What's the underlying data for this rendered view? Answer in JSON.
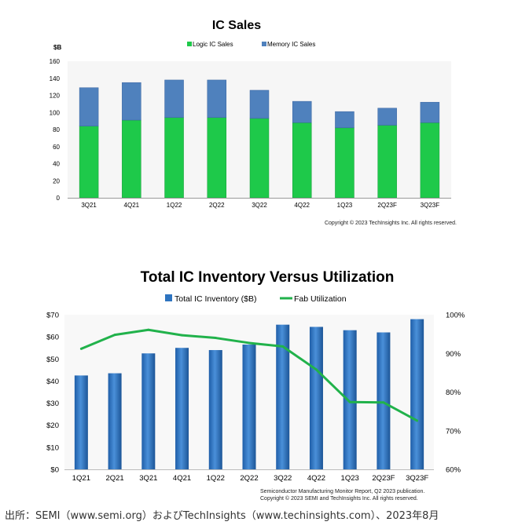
{
  "chart_data": [
    {
      "type": "bar",
      "title": "IC Sales",
      "ylabel": "$B",
      "ylim": [
        0,
        160
      ],
      "yticks": [
        0,
        20,
        40,
        60,
        80,
        100,
        120,
        140,
        160
      ],
      "stacked": true,
      "legend_position": "top",
      "categories": [
        "3Q21",
        "4Q21",
        "1Q22",
        "2Q22",
        "3Q22",
        "4Q22",
        "1Q23",
        "2Q23F",
        "3Q23F"
      ],
      "series": [
        {
          "name": "Logic IC Sales",
          "color": "#1ec94a",
          "values": [
            84,
            91,
            94,
            94,
            93,
            88,
            82,
            85,
            88
          ]
        },
        {
          "name": "Memory IC Sales",
          "color": "#4f81bd",
          "values": [
            45,
            44,
            44,
            44,
            33,
            25,
            19,
            20,
            24
          ]
        }
      ],
      "copyright": "Copyright © 2023 TechInsights Inc.  All rights reserved."
    },
    {
      "type": "bar",
      "title": "Total IC Inventory Versus Utilization",
      "ylim": [
        0,
        70
      ],
      "yticks": [
        "$0",
        "$10",
        "$20",
        "$30",
        "$40",
        "$50",
        "$60",
        "$70"
      ],
      "y2lim": [
        60,
        100
      ],
      "y2ticks": [
        "60%",
        "70%",
        "80%",
        "90%",
        "100%"
      ],
      "legend_position": "top",
      "categories": [
        "1Q21",
        "2Q21",
        "3Q21",
        "4Q21",
        "1Q22",
        "2Q22",
        "3Q22",
        "4Q22",
        "1Q23",
        "2Q23F",
        "3Q23F"
      ],
      "series": [
        {
          "name": "Total IC Inventory ($B)",
          "type": "bar",
          "axis": "left",
          "color": "#2e74c0",
          "values": [
            42.5,
            43.5,
            52.5,
            55,
            54,
            56.5,
            65.5,
            64.5,
            63,
            62,
            68
          ]
        },
        {
          "name": "Fab Utilization",
          "type": "line",
          "axis": "right",
          "color": "#21b24b",
          "values": [
            91.2,
            94.8,
            96.1,
            94.7,
            94,
            92.7,
            91.8,
            85.8,
            77.4,
            77.3,
            72.6
          ]
        }
      ],
      "source_note": "Semiconductor Manufacturing Monitor Report, Q2 2023 publication.",
      "copyright": "Copyright © 2023 SEMI and TechInsights Inc.  All rights reserved."
    }
  ],
  "footer": {
    "source": "出所：SEMI（www.semi.org）およびTechInsights（www.techinsights.com）、2023年8月"
  }
}
